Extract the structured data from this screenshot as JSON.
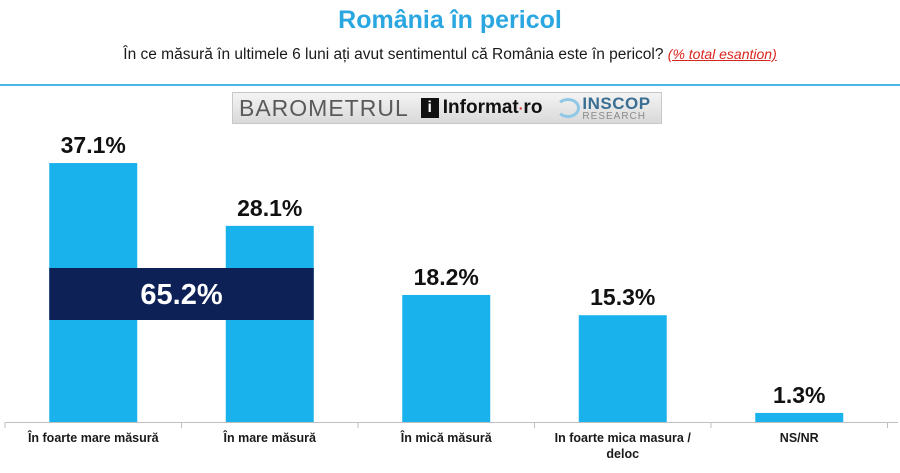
{
  "header": {
    "title": "România în pericol",
    "question": "În ce măsură în ultimele 6 luni ați avut sentimentul că România este în pericol?",
    "note": "(% total esantion)"
  },
  "logos": {
    "barometer": "BAROMETRUL",
    "informat": "Informat",
    "informat_suffix": "ro",
    "inscop": "INSCOP",
    "inscop_sub": "RESEARCH"
  },
  "colors": {
    "bar": "#1ab2ec",
    "highlight": "#0d2157",
    "title": "#2aa7e0",
    "axis": "#bfbfbf"
  },
  "chart_data": {
    "type": "bar",
    "categories": [
      "În foarte mare măsură",
      "În mare măsură",
      "În mică măsură",
      "In foarte mica masura / deloc",
      "NS/NR"
    ],
    "values": [
      37.1,
      28.1,
      18.2,
      15.3,
      1.3
    ],
    "value_labels": [
      "37.1%",
      "28.1%",
      "18.2%",
      "15.3%",
      "1.3%"
    ],
    "ylim": [
      0,
      40
    ],
    "grid": false,
    "title": "",
    "xlabel": "",
    "ylabel": "",
    "annotations": [
      {
        "text": "65.2%",
        "value": 65.2,
        "spans_categories": [
          0,
          1
        ]
      }
    ]
  }
}
